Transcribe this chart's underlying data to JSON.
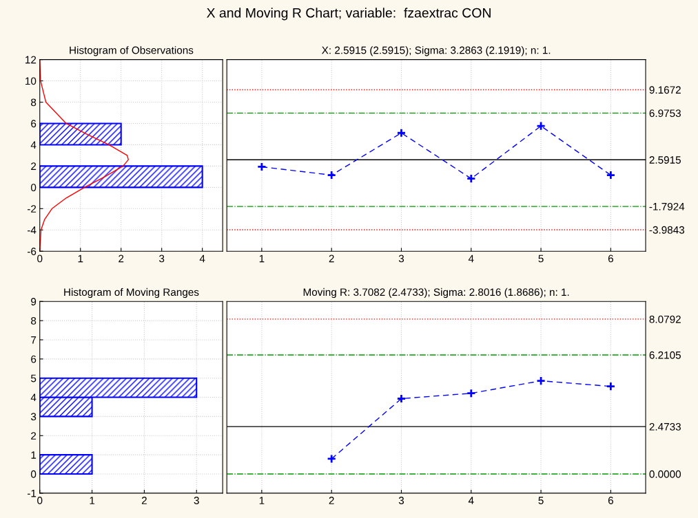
{
  "chart_data": [
    {
      "type": "histogram",
      "orientation": "horizontal",
      "title": "Histogram of Observations",
      "annotations": [
        "X and Moving R Chart; variable:  fzaextrac CON"
      ],
      "bins": [
        0,
        2,
        4,
        6
      ],
      "values": [
        4,
        0,
        2
      ],
      "color": "#0000ff",
      "series": [
        {
          "type": "line",
          "color": "#ff0000",
          "x": [
            12,
            10,
            8,
            6,
            5,
            4,
            3,
            2.6,
            2,
            1,
            0,
            -1,
            -2,
            -3,
            -4,
            -6
          ],
          "values": [
            0.0,
            0.02,
            0.15,
            0.65,
            1.15,
            1.7,
            2.15,
            2.18,
            2.05,
            1.6,
            1.1,
            0.65,
            0.3,
            0.12,
            0.03,
            0.0
          ]
        }
      ],
      "xlim": [
        0,
        4.5
      ],
      "xticks": [
        0,
        1,
        2,
        3,
        4
      ],
      "ylim": [
        -6,
        12
      ],
      "yticks": [
        -6,
        -4,
        -2,
        0,
        2,
        4,
        6,
        8,
        10,
        12
      ],
      "grid": true
    },
    {
      "type": "line",
      "title": "X: 2.5915 (2.5915); Sigma: 3.2863 (2.1919); n: 1.",
      "x": [
        1,
        2,
        3,
        4,
        5,
        6
      ],
      "series": [
        {
          "color": "#0000ff",
          "values": [
            1.93,
            1.15,
            5.11,
            0.82,
            5.76,
            1.15
          ]
        }
      ],
      "marker": "cross",
      "line_style": "dashed",
      "xlim": [
        0.5,
        6.5
      ],
      "xticks": [
        1,
        2,
        3,
        4,
        5,
        6
      ],
      "ylim": [
        -6,
        12
      ],
      "yticks": [
        9.1672,
        6.9753,
        2.5915,
        -1.7924,
        -3.9843
      ],
      "ref_lines": [
        {
          "axis": "y",
          "value": 9.1672,
          "color": "#ff0000",
          "line_style": "dotted"
        },
        {
          "axis": "y",
          "value": 6.9753,
          "color": "#009900",
          "line_style": "dashdot"
        },
        {
          "axis": "y",
          "value": 2.5915,
          "color": "#000000",
          "line_style": "solid"
        },
        {
          "axis": "y",
          "value": -1.7924,
          "color": "#009900",
          "line_style": "dashdot"
        },
        {
          "axis": "y",
          "value": -3.9843,
          "color": "#ff0000",
          "line_style": "dotted"
        }
      ],
      "grid": "x"
    },
    {
      "type": "histogram",
      "orientation": "horizontal",
      "title": "Histogram of Moving Ranges",
      "bins": [
        0,
        1,
        2,
        3,
        4,
        5
      ],
      "values": [
        1,
        0,
        0,
        1,
        3
      ],
      "color": "#0000ff",
      "xlim": [
        0,
        3.5
      ],
      "xticks": [
        0,
        1,
        2,
        3
      ],
      "ylim": [
        -1,
        9
      ],
      "yticks": [
        -1,
        0,
        1,
        2,
        3,
        4,
        5,
        6,
        7,
        8,
        9
      ],
      "grid": true
    },
    {
      "type": "line",
      "title": "Moving R: 3.7082 (2.4733); Sigma: 2.8016 (1.8686); n: 1.",
      "series": [
        {
          "color": "#0000ff",
          "x": [
            2,
            3,
            4,
            5,
            6
          ],
          "values": [
            0.79,
            3.93,
            4.21,
            4.86,
            4.57
          ]
        }
      ],
      "marker": "cross",
      "line_style": "dashed",
      "xlim": [
        0.5,
        6.5
      ],
      "xticks": [
        1,
        2,
        3,
        4,
        5,
        6
      ],
      "ylim": [
        -1,
        9
      ],
      "yticks": [
        8.0792,
        6.2105,
        2.4733,
        {
          "value": 0,
          "label": "0.0000"
        }
      ],
      "ref_lines": [
        {
          "axis": "y",
          "value": 8.0792,
          "color": "#ff0000",
          "line_style": "dotted"
        },
        {
          "axis": "y",
          "value": 6.2105,
          "color": "#009900",
          "line_style": "dashdot"
        },
        {
          "axis": "y",
          "value": 2.4733,
          "color": "#000000",
          "line_style": "solid"
        },
        {
          "axis": "y",
          "value": 0,
          "color": "#009900",
          "line_style": "dashdot"
        }
      ],
      "grid": "x"
    }
  ]
}
